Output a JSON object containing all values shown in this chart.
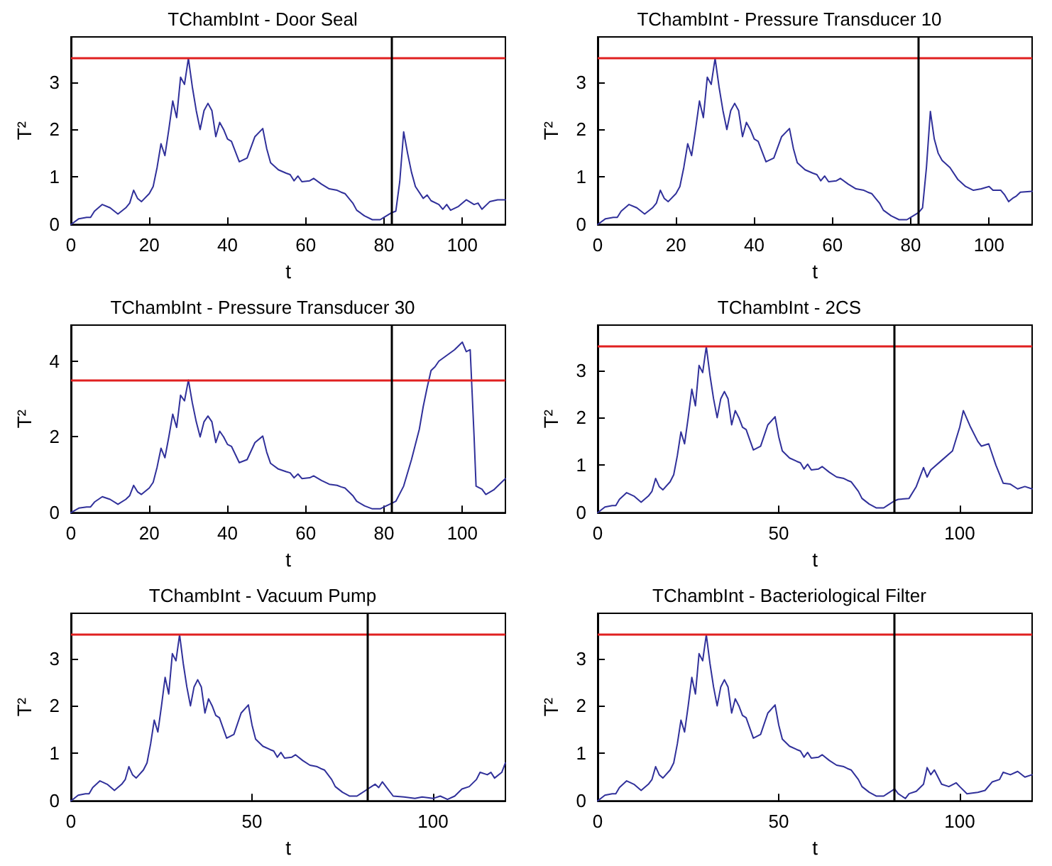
{
  "chart_data": [
    {
      "type": "line",
      "title": "TChambInt - Door Seal",
      "xlabel": "t",
      "ylabel": "T²",
      "xlim": [
        0,
        111
      ],
      "xticks": [
        0,
        20,
        40,
        60,
        80,
        100
      ],
      "ylim": [
        0,
        3.95
      ],
      "yticks": [
        0,
        1,
        2,
        3
      ],
      "grid": false,
      "marker": "none",
      "line_style": "solid",
      "ref_lines": [
        {
          "axis": "y",
          "value": 3.5,
          "color": "#e02020"
        },
        {
          "axis": "x",
          "value": 82,
          "color": "#000000"
        }
      ],
      "series": [
        {
          "color": "#30309a",
          "x": [
            0,
            2,
            4,
            5,
            6,
            8,
            10,
            12,
            14,
            15,
            16,
            17,
            18,
            20,
            21,
            22,
            23,
            24,
            25,
            26,
            27,
            28,
            29,
            30,
            31,
            32,
            33,
            34,
            35,
            36,
            37,
            38,
            39,
            40,
            41,
            43,
            45,
            47,
            49,
            50,
            51,
            53,
            55,
            56,
            57,
            58,
            59,
            61,
            62,
            64,
            66,
            68,
            69,
            70,
            72,
            73,
            75,
            77,
            79,
            80,
            82,
            83,
            84,
            85,
            86,
            87,
            88,
            90,
            91,
            92,
            94,
            95,
            96,
            97,
            99,
            101,
            103,
            104,
            105,
            107,
            109,
            111
          ],
          "values": [
            0,
            0.12,
            0.15,
            0.15,
            0.28,
            0.42,
            0.35,
            0.22,
            0.35,
            0.45,
            0.72,
            0.55,
            0.48,
            0.65,
            0.8,
            1.2,
            1.7,
            1.45,
            2.0,
            2.6,
            2.25,
            3.1,
            2.95,
            3.5,
            2.9,
            2.4,
            2.0,
            2.4,
            2.55,
            2.4,
            1.85,
            2.15,
            2.0,
            1.8,
            1.75,
            1.32,
            1.4,
            1.85,
            2.02,
            1.6,
            1.3,
            1.15,
            1.08,
            1.05,
            0.92,
            1.02,
            0.9,
            0.92,
            0.97,
            0.85,
            0.75,
            0.72,
            0.68,
            0.65,
            0.45,
            0.3,
            0.18,
            0.1,
            0.1,
            0.15,
            0.25,
            0.28,
            0.9,
            1.95,
            1.5,
            1.1,
            0.8,
            0.55,
            0.62,
            0.5,
            0.42,
            0.32,
            0.42,
            0.3,
            0.38,
            0.52,
            0.42,
            0.45,
            0.32,
            0.48,
            0.52,
            0.52
          ]
        }
      ]
    },
    {
      "type": "line",
      "title": "TChambInt - Pressure Transducer 10",
      "xlabel": "t",
      "ylabel": "T²",
      "xlim": [
        0,
        111
      ],
      "xticks": [
        0,
        20,
        40,
        60,
        80,
        100
      ],
      "ylim": [
        0,
        3.95
      ],
      "yticks": [
        0,
        1,
        2,
        3
      ],
      "grid": false,
      "marker": "none",
      "line_style": "solid",
      "ref_lines": [
        {
          "axis": "y",
          "value": 3.5,
          "color": "#e02020"
        },
        {
          "axis": "x",
          "value": 82,
          "color": "#000000"
        }
      ],
      "series": [
        {
          "color": "#30309a",
          "x": [
            0,
            2,
            4,
            5,
            6,
            8,
            10,
            12,
            14,
            15,
            16,
            17,
            18,
            20,
            21,
            22,
            23,
            24,
            25,
            26,
            27,
            28,
            29,
            30,
            31,
            32,
            33,
            34,
            35,
            36,
            37,
            38,
            39,
            40,
            41,
            43,
            45,
            47,
            49,
            50,
            51,
            53,
            55,
            56,
            57,
            58,
            59,
            61,
            62,
            64,
            66,
            68,
            69,
            70,
            72,
            73,
            75,
            77,
            79,
            80,
            82,
            83,
            84,
            85,
            86,
            87,
            88,
            90,
            92,
            94,
            96,
            98,
            100,
            101,
            103,
            104,
            105,
            106,
            107,
            108,
            111
          ],
          "values": [
            0,
            0.12,
            0.15,
            0.15,
            0.28,
            0.42,
            0.35,
            0.22,
            0.35,
            0.45,
            0.72,
            0.55,
            0.48,
            0.65,
            0.8,
            1.2,
            1.7,
            1.45,
            2.0,
            2.6,
            2.25,
            3.1,
            2.95,
            3.5,
            2.9,
            2.4,
            2.0,
            2.4,
            2.55,
            2.4,
            1.85,
            2.15,
            2.0,
            1.8,
            1.75,
            1.32,
            1.4,
            1.85,
            2.02,
            1.6,
            1.3,
            1.15,
            1.08,
            1.05,
            0.92,
            1.02,
            0.9,
            0.92,
            0.97,
            0.85,
            0.75,
            0.72,
            0.68,
            0.65,
            0.45,
            0.3,
            0.18,
            0.1,
            0.1,
            0.15,
            0.25,
            0.35,
            1.2,
            2.38,
            1.8,
            1.5,
            1.35,
            1.2,
            0.95,
            0.8,
            0.72,
            0.75,
            0.8,
            0.72,
            0.72,
            0.62,
            0.48,
            0.55,
            0.6,
            0.68,
            0.7
          ]
        }
      ]
    },
    {
      "type": "line",
      "title": "TChambInt - Pressure Transducer 30",
      "xlabel": "t",
      "ylabel": "T²",
      "xlim": [
        0,
        111
      ],
      "xticks": [
        0,
        20,
        40,
        60,
        80,
        100
      ],
      "ylim": [
        0,
        4.95
      ],
      "yticks": [
        0,
        2,
        4
      ],
      "grid": false,
      "marker": "none",
      "line_style": "solid",
      "ref_lines": [
        {
          "axis": "y",
          "value": 3.5,
          "color": "#e02020"
        },
        {
          "axis": "x",
          "value": 82,
          "color": "#000000"
        }
      ],
      "series": [
        {
          "color": "#30309a",
          "x": [
            0,
            2,
            4,
            5,
            6,
            8,
            10,
            12,
            14,
            15,
            16,
            17,
            18,
            20,
            21,
            22,
            23,
            24,
            25,
            26,
            27,
            28,
            29,
            30,
            31,
            32,
            33,
            34,
            35,
            36,
            37,
            38,
            39,
            40,
            41,
            43,
            45,
            47,
            49,
            50,
            51,
            53,
            55,
            56,
            57,
            58,
            59,
            61,
            62,
            64,
            66,
            68,
            69,
            70,
            72,
            73,
            75,
            77,
            79,
            80,
            82,
            83,
            85,
            87,
            89,
            90,
            91,
            92,
            93,
            94,
            96,
            98,
            100,
            101,
            102,
            103,
            103.5,
            105,
            106,
            108,
            110,
            111
          ],
          "values": [
            0,
            0.12,
            0.15,
            0.15,
            0.28,
            0.42,
            0.35,
            0.22,
            0.35,
            0.45,
            0.72,
            0.55,
            0.48,
            0.65,
            0.8,
            1.2,
            1.7,
            1.45,
            2.0,
            2.6,
            2.25,
            3.1,
            2.95,
            3.5,
            2.9,
            2.4,
            2.0,
            2.4,
            2.55,
            2.4,
            1.85,
            2.15,
            2.0,
            1.8,
            1.75,
            1.32,
            1.4,
            1.85,
            2.02,
            1.6,
            1.3,
            1.15,
            1.08,
            1.05,
            0.92,
            1.02,
            0.9,
            0.92,
            0.97,
            0.85,
            0.75,
            0.72,
            0.68,
            0.65,
            0.45,
            0.3,
            0.18,
            0.1,
            0.1,
            0.15,
            0.25,
            0.3,
            0.7,
            1.4,
            2.2,
            2.8,
            3.3,
            3.75,
            3.85,
            4.0,
            4.15,
            4.3,
            4.5,
            4.25,
            4.3,
            2.0,
            0.7,
            0.62,
            0.48,
            0.6,
            0.8,
            0.9
          ]
        }
      ]
    },
    {
      "type": "line",
      "title": "TChambInt - 2CS",
      "xlabel": "t",
      "ylabel": "T²",
      "xlim": [
        0,
        120
      ],
      "xticks": [
        0,
        50,
        100
      ],
      "ylim": [
        0,
        3.95
      ],
      "yticks": [
        0,
        1,
        2,
        3
      ],
      "grid": false,
      "marker": "none",
      "line_style": "solid",
      "ref_lines": [
        {
          "axis": "y",
          "value": 3.5,
          "color": "#e02020"
        },
        {
          "axis": "x",
          "value": 82,
          "color": "#000000"
        }
      ],
      "series": [
        {
          "color": "#30309a",
          "x": [
            0,
            2,
            4,
            5,
            6,
            8,
            10,
            12,
            14,
            15,
            16,
            17,
            18,
            20,
            21,
            22,
            23,
            24,
            25,
            26,
            27,
            28,
            29,
            30,
            31,
            32,
            33,
            34,
            35,
            36,
            37,
            38,
            39,
            40,
            41,
            43,
            45,
            47,
            49,
            50,
            51,
            53,
            55,
            56,
            57,
            58,
            59,
            61,
            62,
            64,
            66,
            68,
            69,
            70,
            72,
            73,
            75,
            77,
            79,
            80,
            82,
            83,
            86,
            88,
            90,
            91,
            92,
            95,
            98,
            100,
            101,
            103,
            105,
            106,
            108,
            110,
            112,
            114,
            116,
            118,
            120
          ],
          "values": [
            0,
            0.12,
            0.15,
            0.15,
            0.28,
            0.42,
            0.35,
            0.22,
            0.35,
            0.45,
            0.72,
            0.55,
            0.48,
            0.65,
            0.8,
            1.2,
            1.7,
            1.45,
            2.0,
            2.6,
            2.25,
            3.1,
            2.95,
            3.5,
            2.9,
            2.4,
            2.0,
            2.4,
            2.55,
            2.4,
            1.85,
            2.15,
            2.0,
            1.8,
            1.75,
            1.32,
            1.4,
            1.85,
            2.02,
            1.6,
            1.3,
            1.15,
            1.08,
            1.05,
            0.92,
            1.02,
            0.9,
            0.92,
            0.97,
            0.85,
            0.75,
            0.72,
            0.68,
            0.65,
            0.45,
            0.3,
            0.18,
            0.1,
            0.1,
            0.15,
            0.25,
            0.28,
            0.3,
            0.55,
            0.95,
            0.75,
            0.9,
            1.1,
            1.3,
            1.8,
            2.15,
            1.8,
            1.5,
            1.4,
            1.45,
            1.0,
            0.62,
            0.6,
            0.5,
            0.55,
            0.5
          ]
        }
      ]
    },
    {
      "type": "line",
      "title": "TChambInt - Vacuum Pump",
      "xlabel": "t",
      "ylabel": "T²",
      "xlim": [
        0,
        120
      ],
      "xticks": [
        0,
        50,
        100
      ],
      "ylim": [
        0,
        3.95
      ],
      "yticks": [
        0,
        1,
        2,
        3
      ],
      "grid": false,
      "marker": "none",
      "line_style": "solid",
      "ref_lines": [
        {
          "axis": "y",
          "value": 3.5,
          "color": "#e02020"
        },
        {
          "axis": "x",
          "value": 82,
          "color": "#000000"
        }
      ],
      "series": [
        {
          "color": "#30309a",
          "x": [
            0,
            2,
            4,
            5,
            6,
            8,
            10,
            12,
            14,
            15,
            16,
            17,
            18,
            20,
            21,
            22,
            23,
            24,
            25,
            26,
            27,
            28,
            29,
            30,
            31,
            32,
            33,
            34,
            35,
            36,
            37,
            38,
            39,
            40,
            41,
            43,
            45,
            47,
            49,
            50,
            51,
            53,
            55,
            56,
            57,
            58,
            59,
            61,
            62,
            64,
            66,
            68,
            69,
            70,
            72,
            73,
            75,
            77,
            79,
            80,
            82,
            83,
            84,
            85,
            86,
            87,
            89,
            92,
            95,
            97,
            100,
            102,
            104,
            106,
            108,
            110,
            112,
            113,
            115,
            116,
            117,
            119,
            120
          ],
          "values": [
            0,
            0.12,
            0.15,
            0.15,
            0.28,
            0.42,
            0.35,
            0.22,
            0.35,
            0.45,
            0.72,
            0.55,
            0.48,
            0.65,
            0.8,
            1.2,
            1.7,
            1.45,
            2.0,
            2.6,
            2.25,
            3.1,
            2.95,
            3.5,
            2.9,
            2.4,
            2.0,
            2.4,
            2.55,
            2.4,
            1.85,
            2.15,
            2.0,
            1.8,
            1.75,
            1.32,
            1.4,
            1.85,
            2.02,
            1.6,
            1.3,
            1.15,
            1.08,
            1.05,
            0.92,
            1.02,
            0.9,
            0.92,
            0.97,
            0.85,
            0.75,
            0.72,
            0.68,
            0.65,
            0.45,
            0.3,
            0.18,
            0.1,
            0.1,
            0.15,
            0.25,
            0.3,
            0.35,
            0.28,
            0.4,
            0.3,
            0.1,
            0.08,
            0.05,
            0.08,
            0.05,
            0.1,
            0.03,
            0.1,
            0.25,
            0.3,
            0.45,
            0.6,
            0.55,
            0.6,
            0.48,
            0.6,
            0.8
          ]
        }
      ]
    },
    {
      "type": "line",
      "title": "TChambInt - Bacteriological Filter",
      "xlabel": "t",
      "ylabel": "T²",
      "xlim": [
        0,
        120
      ],
      "xticks": [
        0,
        50,
        100
      ],
      "ylim": [
        0,
        3.95
      ],
      "yticks": [
        0,
        1,
        2,
        3
      ],
      "grid": false,
      "marker": "none",
      "line_style": "solid",
      "ref_lines": [
        {
          "axis": "y",
          "value": 3.5,
          "color": "#e02020"
        },
        {
          "axis": "x",
          "value": 82,
          "color": "#000000"
        }
      ],
      "series": [
        {
          "color": "#30309a",
          "x": [
            0,
            2,
            4,
            5,
            6,
            8,
            10,
            12,
            14,
            15,
            16,
            17,
            18,
            20,
            21,
            22,
            23,
            24,
            25,
            26,
            27,
            28,
            29,
            30,
            31,
            32,
            33,
            34,
            35,
            36,
            37,
            38,
            39,
            40,
            41,
            43,
            45,
            47,
            49,
            50,
            51,
            53,
            55,
            56,
            57,
            58,
            59,
            61,
            62,
            64,
            66,
            68,
            69,
            70,
            72,
            73,
            75,
            77,
            79,
            80,
            82,
            83,
            84,
            85,
            86,
            88,
            90,
            91,
            92,
            93,
            95,
            97,
            99,
            100,
            102,
            105,
            107,
            109,
            111,
            112,
            114,
            116,
            118,
            120
          ],
          "values": [
            0,
            0.12,
            0.15,
            0.15,
            0.28,
            0.42,
            0.35,
            0.22,
            0.35,
            0.45,
            0.72,
            0.55,
            0.48,
            0.65,
            0.8,
            1.2,
            1.7,
            1.45,
            2.0,
            2.6,
            2.25,
            3.1,
            2.95,
            3.5,
            2.9,
            2.4,
            2.0,
            2.4,
            2.55,
            2.4,
            1.85,
            2.15,
            2.0,
            1.8,
            1.75,
            1.32,
            1.4,
            1.85,
            2.02,
            1.6,
            1.3,
            1.15,
            1.08,
            1.05,
            0.92,
            1.02,
            0.9,
            0.92,
            0.97,
            0.85,
            0.75,
            0.72,
            0.68,
            0.65,
            0.45,
            0.3,
            0.18,
            0.1,
            0.1,
            0.15,
            0.25,
            0.15,
            0.1,
            0.05,
            0.15,
            0.2,
            0.35,
            0.7,
            0.55,
            0.65,
            0.35,
            0.3,
            0.38,
            0.3,
            0.15,
            0.18,
            0.22,
            0.4,
            0.45,
            0.6,
            0.55,
            0.62,
            0.5,
            0.55
          ]
        }
      ]
    }
  ]
}
